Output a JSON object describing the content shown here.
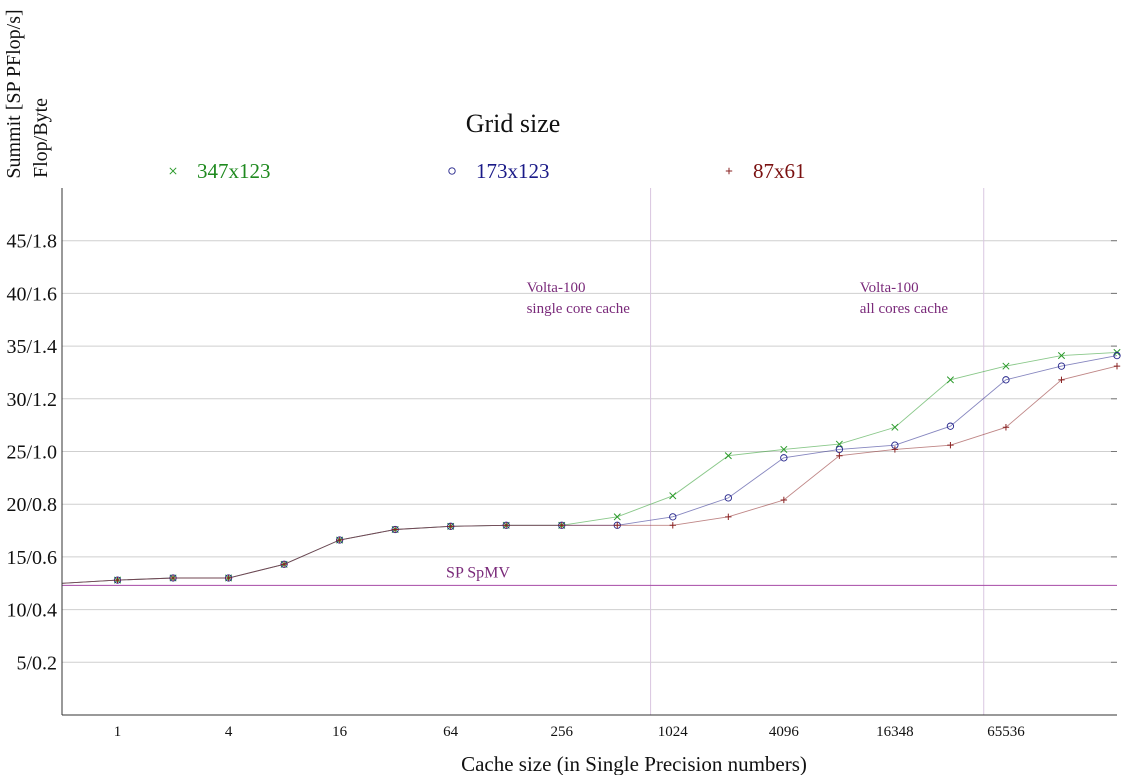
{
  "chart_data": {
    "type": "line",
    "ylabel_line1": "Summit [SP PFlop/s]",
    "ylabel_line2": "Flop/Byte",
    "xlabel": "Cache size (in Single Precision numbers)",
    "legend_title": "Grid size",
    "legend_position": "top",
    "grid": true,
    "ylim": [
      0,
      50
    ],
    "xlim": [
      -1,
      18
    ],
    "y_ticks": [
      {
        "value": 5,
        "label": "5/0.2"
      },
      {
        "value": 10,
        "label": "10/0.4"
      },
      {
        "value": 15,
        "label": "15/0.6"
      },
      {
        "value": 20,
        "label": "20/0.8"
      },
      {
        "value": 25,
        "label": "25/1.0"
      },
      {
        "value": 30,
        "label": "30/1.2"
      },
      {
        "value": 35,
        "label": "35/1.4"
      },
      {
        "value": 40,
        "label": "40/1.6"
      },
      {
        "value": 45,
        "label": "45/1.8"
      }
    ],
    "x_ticks": [
      {
        "value": 0,
        "label": "1"
      },
      {
        "value": 2,
        "label": "4"
      },
      {
        "value": 4,
        "label": "16"
      },
      {
        "value": 6,
        "label": "64"
      },
      {
        "value": 8,
        "label": "256"
      },
      {
        "value": 10,
        "label": "1024"
      },
      {
        "value": 12,
        "label": "4096"
      },
      {
        "value": 14,
        "label": "16348"
      },
      {
        "value": 16,
        "label": "65536"
      }
    ],
    "series": [
      {
        "name": "347x123",
        "color": "#2a9a2a",
        "label_color": "#1f8a1f",
        "marker": "x",
        "x": [
          -1,
          0,
          1,
          2,
          3,
          4,
          5,
          6,
          7,
          8,
          9,
          10,
          11,
          12,
          13,
          14,
          15,
          16,
          17,
          18
        ],
        "y": [
          12.5,
          12.8,
          13.0,
          13.0,
          14.3,
          16.6,
          17.6,
          17.9,
          18.0,
          18.0,
          18.8,
          20.8,
          24.6,
          25.2,
          25.7,
          27.3,
          31.8,
          33.1,
          34.1,
          34.4
        ]
      },
      {
        "name": "173x123",
        "color": "#23238a",
        "label_color": "#1a1a88",
        "marker": "o",
        "x": [
          -1,
          0,
          1,
          2,
          3,
          4,
          5,
          6,
          7,
          8,
          9,
          10,
          11,
          12,
          13,
          14,
          15,
          16,
          17,
          18
        ],
        "y": [
          12.5,
          12.8,
          13.0,
          13.0,
          14.3,
          16.6,
          17.6,
          17.9,
          18.0,
          18.0,
          18.0,
          18.8,
          20.6,
          24.4,
          25.2,
          25.6,
          27.4,
          31.8,
          33.1,
          34.1
        ]
      },
      {
        "name": "87x61",
        "color": "#8a2323",
        "label_color": "#7a1010",
        "marker": "+",
        "x": [
          -1,
          0,
          1,
          2,
          3,
          4,
          5,
          6,
          7,
          8,
          9,
          10,
          11,
          12,
          13,
          14,
          15,
          16,
          17,
          18
        ],
        "y": [
          12.5,
          12.8,
          13.0,
          13.0,
          14.3,
          16.6,
          17.6,
          17.9,
          18.0,
          18.0,
          18.0,
          18.0,
          18.8,
          20.4,
          24.6,
          25.2,
          25.6,
          27.3,
          31.8,
          33.1
        ]
      }
    ],
    "reference_line": {
      "label": "SP SpMV",
      "y": 12.3,
      "color": "#a64aa6",
      "label_color": "#7a2a7a"
    },
    "vertical_lines": [
      {
        "x": 9.6,
        "label_line1": "Volta-100",
        "label_line2": "single core cache",
        "label_side": "left"
      },
      {
        "x": 15.6,
        "label_line1": "Volta-100",
        "label_line2": "all cores cache",
        "label_side": "left"
      }
    ],
    "annotation_color": "#7a2a7a"
  }
}
